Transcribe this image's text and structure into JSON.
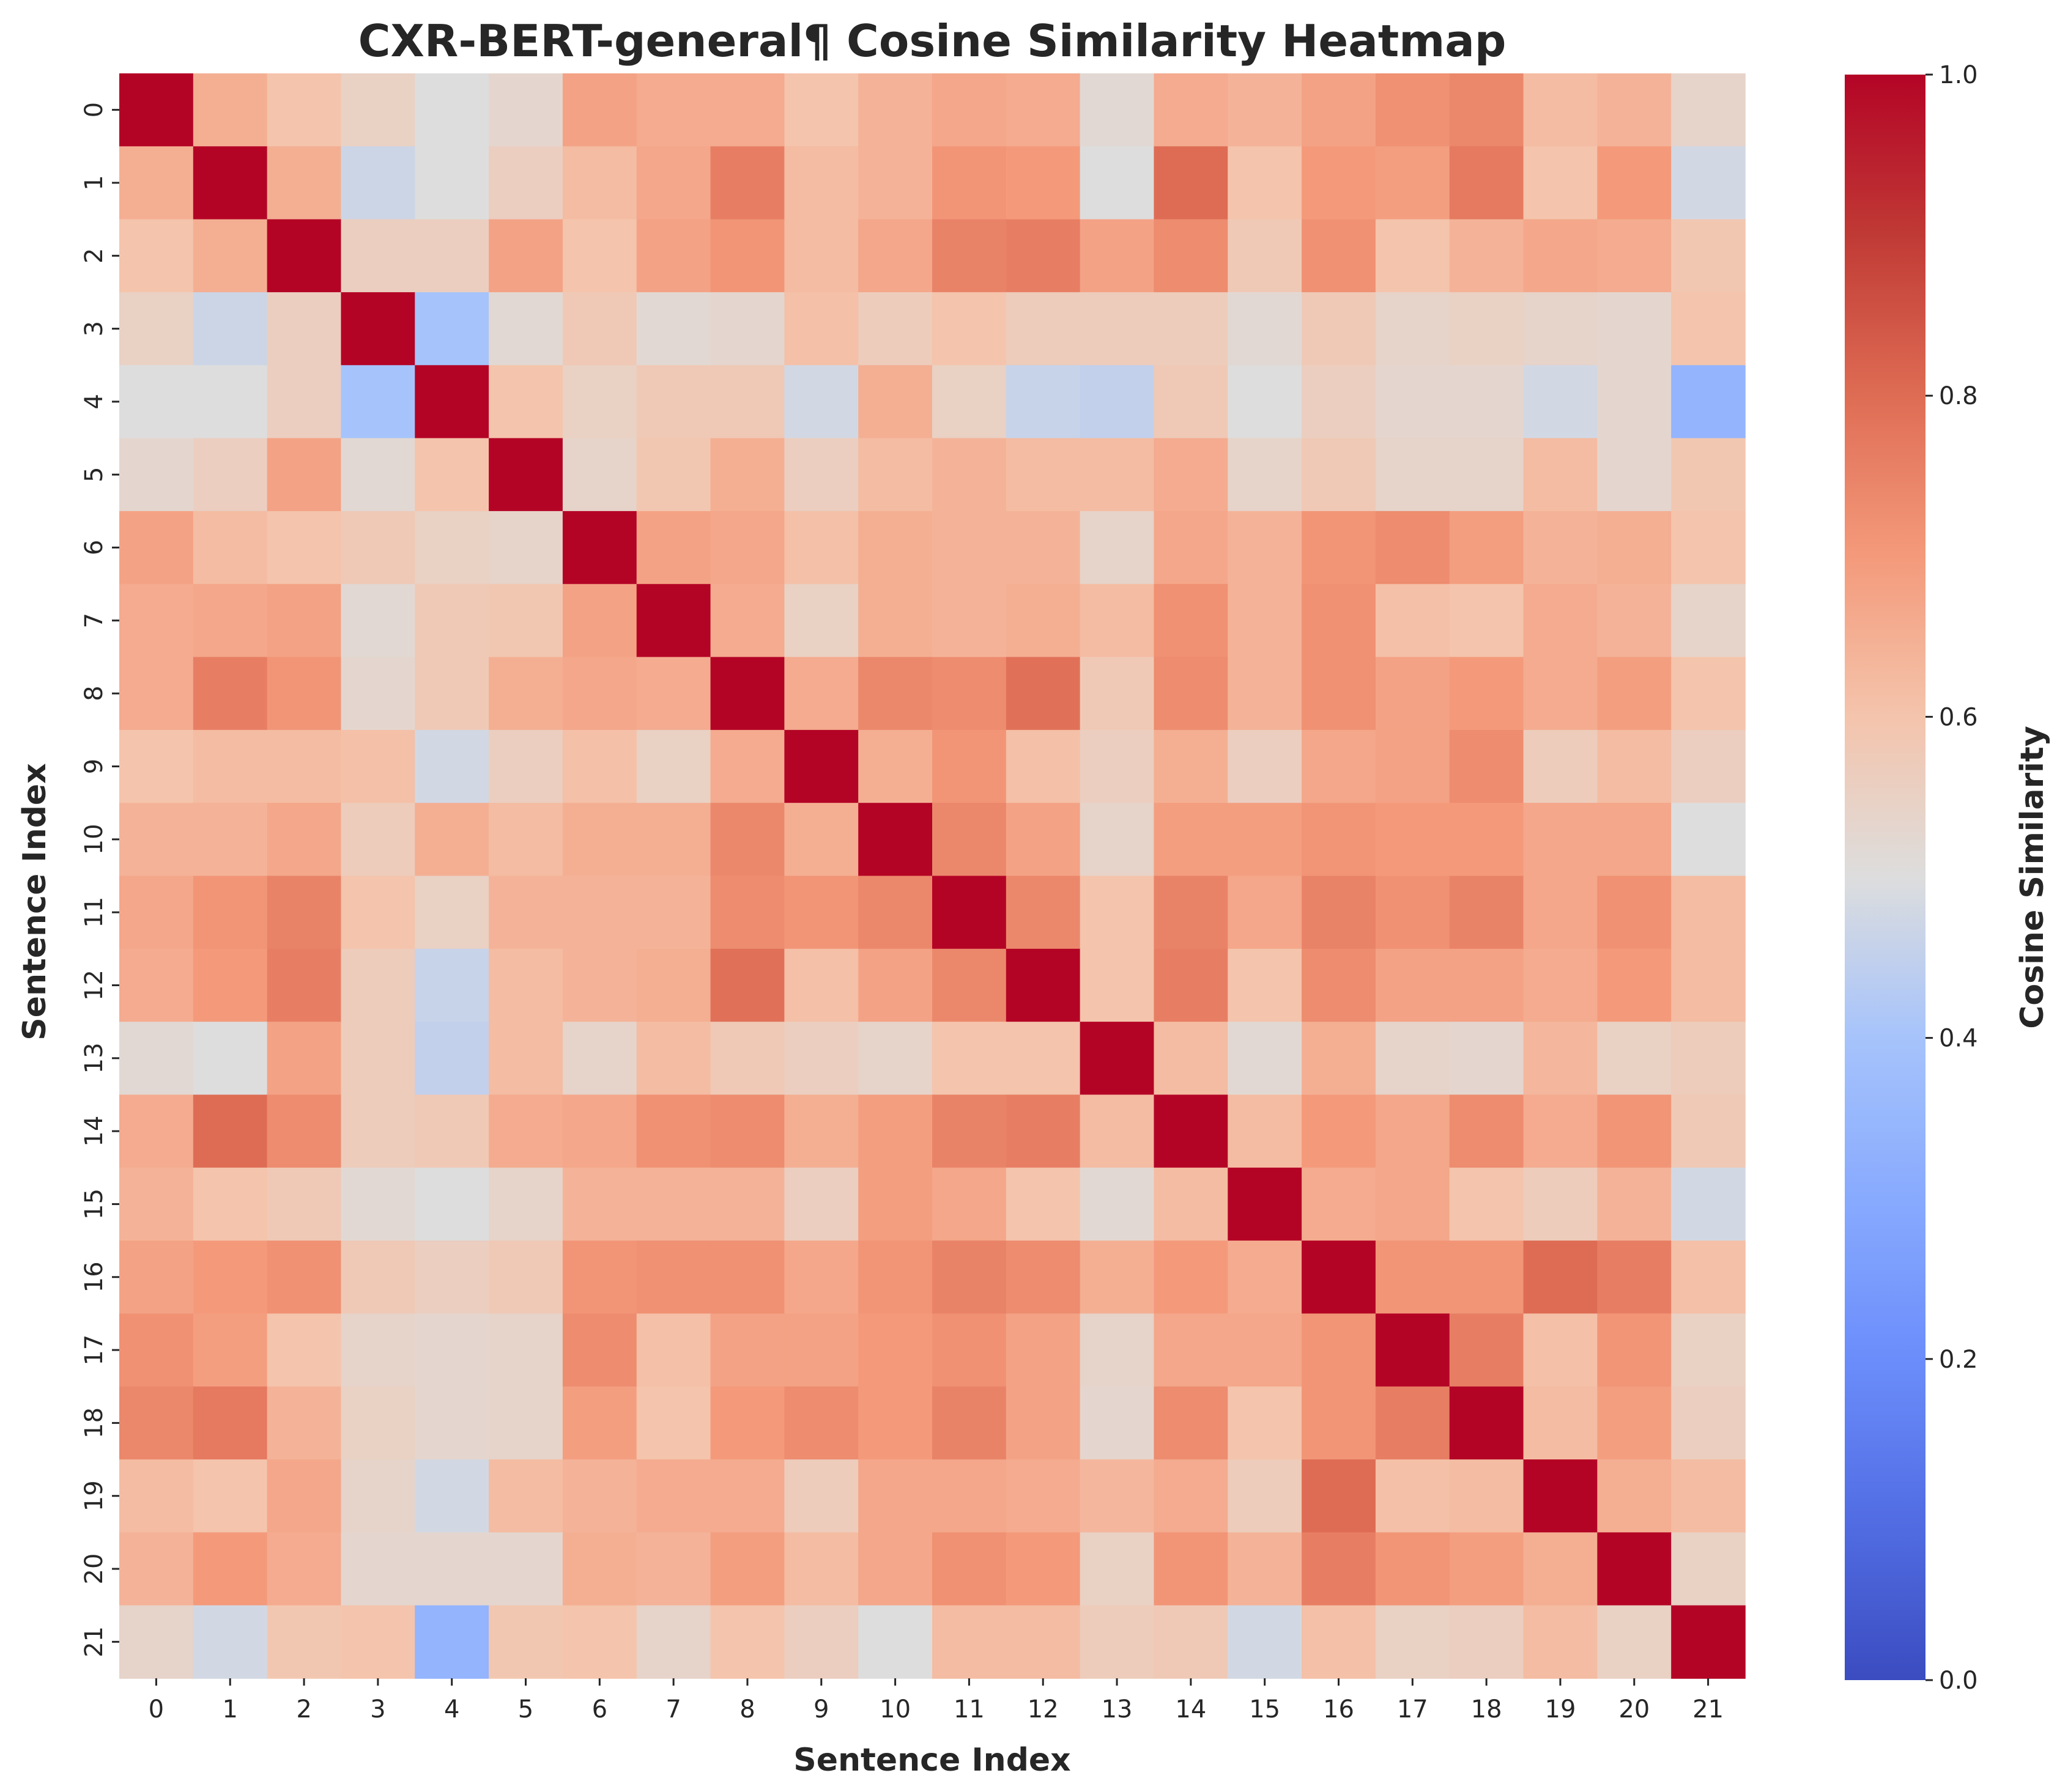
{
  "chart_data": {
    "type": "heatmap",
    "title": "CXR-BERT-general¶ Cosine Similarity Heatmap",
    "xlabel": "Sentence Index",
    "ylabel": "Sentence Index",
    "colorbar_label": "Cosine Similarity",
    "colormap": "coolwarm",
    "vmin": 0.0,
    "vmax": 1.0,
    "colorbar_ticks": [
      "0.0",
      "0.2",
      "0.4",
      "0.6",
      "0.8",
      "1.0"
    ],
    "x_tick_labels": [
      "0",
      "1",
      "2",
      "3",
      "4",
      "5",
      "6",
      "7",
      "8",
      "9",
      "10",
      "11",
      "12",
      "13",
      "14",
      "15",
      "16",
      "17",
      "18",
      "19",
      "20",
      "21"
    ],
    "y_tick_labels": [
      "0",
      "1",
      "2",
      "3",
      "4",
      "5",
      "6",
      "7",
      "8",
      "9",
      "10",
      "11",
      "12",
      "13",
      "14",
      "15",
      "16",
      "17",
      "18",
      "19",
      "20",
      "21"
    ],
    "values": [
      [
        1.0,
        0.65,
        0.6,
        0.55,
        0.5,
        0.53,
        0.68,
        0.66,
        0.66,
        0.6,
        0.64,
        0.67,
        0.66,
        0.52,
        0.66,
        0.64,
        0.68,
        0.72,
        0.74,
        0.62,
        0.64,
        0.54
      ],
      [
        0.65,
        1.0,
        0.65,
        0.47,
        0.5,
        0.56,
        0.62,
        0.67,
        0.76,
        0.62,
        0.64,
        0.71,
        0.7,
        0.5,
        0.8,
        0.6,
        0.7,
        0.69,
        0.77,
        0.6,
        0.7,
        0.48
      ],
      [
        0.6,
        0.65,
        1.0,
        0.56,
        0.56,
        0.68,
        0.6,
        0.68,
        0.71,
        0.62,
        0.67,
        0.75,
        0.76,
        0.68,
        0.73,
        0.58,
        0.72,
        0.6,
        0.64,
        0.67,
        0.66,
        0.59
      ],
      [
        0.55,
        0.47,
        0.56,
        1.0,
        0.4,
        0.52,
        0.58,
        0.52,
        0.53,
        0.61,
        0.57,
        0.6,
        0.57,
        0.57,
        0.57,
        0.52,
        0.58,
        0.54,
        0.55,
        0.54,
        0.53,
        0.6
      ],
      [
        0.5,
        0.5,
        0.56,
        0.4,
        1.0,
        0.6,
        0.55,
        0.58,
        0.58,
        0.48,
        0.65,
        0.55,
        0.46,
        0.45,
        0.58,
        0.5,
        0.56,
        0.53,
        0.53,
        0.48,
        0.53,
        0.34
      ],
      [
        0.53,
        0.56,
        0.68,
        0.52,
        0.6,
        1.0,
        0.54,
        0.59,
        0.65,
        0.56,
        0.62,
        0.64,
        0.62,
        0.62,
        0.66,
        0.54,
        0.58,
        0.54,
        0.54,
        0.62,
        0.53,
        0.59
      ],
      [
        0.68,
        0.62,
        0.6,
        0.58,
        0.55,
        0.54,
        1.0,
        0.68,
        0.67,
        0.61,
        0.65,
        0.64,
        0.64,
        0.54,
        0.67,
        0.64,
        0.71,
        0.73,
        0.69,
        0.64,
        0.65,
        0.6
      ],
      [
        0.66,
        0.67,
        0.68,
        0.52,
        0.58,
        0.59,
        0.68,
        1.0,
        0.66,
        0.55,
        0.65,
        0.64,
        0.65,
        0.62,
        0.72,
        0.64,
        0.72,
        0.61,
        0.6,
        0.66,
        0.64,
        0.54
      ],
      [
        0.66,
        0.76,
        0.71,
        0.53,
        0.58,
        0.65,
        0.67,
        0.66,
        1.0,
        0.66,
        0.74,
        0.73,
        0.79,
        0.58,
        0.73,
        0.64,
        0.72,
        0.68,
        0.7,
        0.66,
        0.69,
        0.6
      ],
      [
        0.6,
        0.62,
        0.62,
        0.61,
        0.48,
        0.56,
        0.61,
        0.55,
        0.66,
        1.0,
        0.65,
        0.71,
        0.61,
        0.56,
        0.65,
        0.56,
        0.67,
        0.68,
        0.73,
        0.57,
        0.62,
        0.56
      ],
      [
        0.64,
        0.64,
        0.67,
        0.57,
        0.65,
        0.62,
        0.65,
        0.65,
        0.74,
        0.65,
        1.0,
        0.74,
        0.68,
        0.54,
        0.69,
        0.69,
        0.71,
        0.7,
        0.7,
        0.67,
        0.67,
        0.5
      ],
      [
        0.67,
        0.71,
        0.75,
        0.6,
        0.55,
        0.64,
        0.64,
        0.64,
        0.73,
        0.71,
        0.74,
        1.0,
        0.74,
        0.6,
        0.75,
        0.67,
        0.75,
        0.72,
        0.75,
        0.67,
        0.72,
        0.62
      ],
      [
        0.66,
        0.7,
        0.76,
        0.57,
        0.46,
        0.62,
        0.64,
        0.65,
        0.79,
        0.61,
        0.68,
        0.74,
        1.0,
        0.6,
        0.76,
        0.6,
        0.73,
        0.68,
        0.68,
        0.66,
        0.7,
        0.62
      ],
      [
        0.52,
        0.5,
        0.68,
        0.57,
        0.45,
        0.62,
        0.54,
        0.62,
        0.58,
        0.56,
        0.54,
        0.6,
        0.6,
        1.0,
        0.62,
        0.52,
        0.65,
        0.54,
        0.53,
        0.63,
        0.55,
        0.57
      ],
      [
        0.66,
        0.8,
        0.73,
        0.57,
        0.58,
        0.66,
        0.67,
        0.72,
        0.73,
        0.65,
        0.69,
        0.75,
        0.76,
        0.62,
        1.0,
        0.62,
        0.7,
        0.67,
        0.73,
        0.66,
        0.71,
        0.58
      ],
      [
        0.64,
        0.6,
        0.58,
        0.52,
        0.5,
        0.54,
        0.64,
        0.64,
        0.64,
        0.56,
        0.69,
        0.67,
        0.6,
        0.52,
        0.62,
        1.0,
        0.66,
        0.67,
        0.6,
        0.57,
        0.64,
        0.48
      ],
      [
        0.68,
        0.7,
        0.72,
        0.58,
        0.56,
        0.58,
        0.71,
        0.72,
        0.72,
        0.67,
        0.71,
        0.75,
        0.73,
        0.65,
        0.7,
        0.66,
        1.0,
        0.71,
        0.71,
        0.8,
        0.76,
        0.61
      ],
      [
        0.72,
        0.69,
        0.6,
        0.54,
        0.53,
        0.54,
        0.73,
        0.61,
        0.68,
        0.68,
        0.7,
        0.72,
        0.68,
        0.54,
        0.67,
        0.67,
        0.71,
        1.0,
        0.76,
        0.61,
        0.71,
        0.55
      ],
      [
        0.74,
        0.77,
        0.64,
        0.55,
        0.53,
        0.54,
        0.69,
        0.6,
        0.7,
        0.73,
        0.7,
        0.75,
        0.68,
        0.53,
        0.73,
        0.6,
        0.71,
        0.76,
        1.0,
        0.62,
        0.69,
        0.56
      ],
      [
        0.62,
        0.6,
        0.67,
        0.54,
        0.48,
        0.62,
        0.64,
        0.66,
        0.66,
        0.57,
        0.67,
        0.67,
        0.66,
        0.63,
        0.66,
        0.57,
        0.8,
        0.61,
        0.62,
        1.0,
        0.65,
        0.62
      ],
      [
        0.64,
        0.7,
        0.66,
        0.53,
        0.53,
        0.53,
        0.65,
        0.64,
        0.69,
        0.62,
        0.67,
        0.72,
        0.7,
        0.55,
        0.71,
        0.64,
        0.76,
        0.71,
        0.69,
        0.65,
        1.0,
        0.55
      ],
      [
        0.54,
        0.48,
        0.59,
        0.6,
        0.34,
        0.59,
        0.6,
        0.54,
        0.6,
        0.56,
        0.5,
        0.62,
        0.62,
        0.57,
        0.58,
        0.48,
        0.61,
        0.55,
        0.56,
        0.62,
        0.55,
        1.0
      ]
    ]
  }
}
